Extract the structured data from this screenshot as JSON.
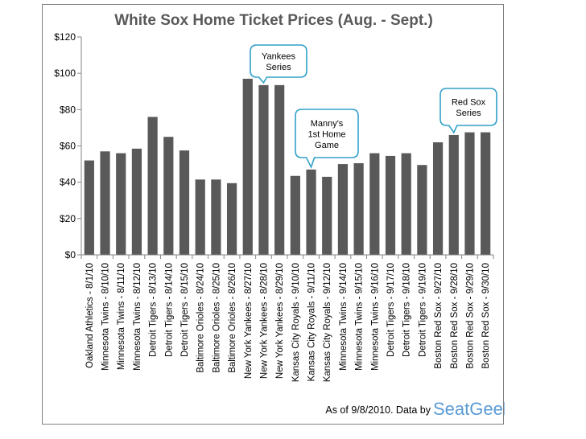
{
  "chart_data": {
    "type": "bar",
    "title": "White Sox Home Ticket Prices (Aug. - Sept.)",
    "xlabel": "",
    "ylabel": "",
    "ylim": [
      0,
      120
    ],
    "yticks": [
      "$0",
      "$20",
      "$40",
      "$60",
      "$80",
      "$100",
      "$120"
    ],
    "yticks_values": [
      0,
      20,
      40,
      60,
      80,
      100,
      120
    ],
    "grid": false,
    "bar_color": "#595959",
    "categories": [
      "Oakland Athletics - 8/1/10",
      "Minnesota Twins - 8/10/10",
      "Minnesota Twins - 8/11/10",
      "Minnesota Twins - 8/12/10",
      "Detroit Tigers - 8/13/10",
      "Detroit Tigers - 8/14/10",
      "Detroit Tigers - 8/15/10",
      "Baltimore Orioles - 8/24/10",
      "Baltimore Orioles - 8/25/10",
      "Baltimore Orioles - 8/26/10",
      "New York Yankees - 8/27/10",
      "New York Yankees - 8/28/10",
      "New York Yankees - 8/29/10",
      "Kansas City Royals - 9/10/10",
      "Kansas City Royals - 9/11/10",
      "Kansas City Royals - 9/12/10",
      "Minnesota Twins - 9/14/10",
      "Minnesota Twins - 9/15/10",
      "Minnesota Twins - 9/16/10",
      "Detroit Tigers - 9/17/10",
      "Detroit Tigers - 9/18/10",
      "Detroit Tigers - 9/19/10",
      "Boston Red Sox - 9/27/10",
      "Boston Red Sox - 9/28/10",
      "Boston Red Sox - 9/29/10",
      "Boston Red Sox - 9/30/10"
    ],
    "values": [
      52,
      57,
      56,
      58.5,
      76,
      65,
      57.5,
      41.5,
      41.5,
      39.5,
      97,
      93.5,
      93.5,
      43.5,
      47,
      43,
      50,
      50.5,
      56,
      54.5,
      56,
      49.5,
      62,
      66,
      67.5,
      67.5
    ],
    "annotations": [
      {
        "lines": [
          "Yankees",
          "Series"
        ],
        "target_index": 11
      },
      {
        "lines": [
          "Manny's",
          "1st Home",
          "Game"
        ],
        "target_index": 14
      },
      {
        "lines": [
          "Red Sox",
          "Series"
        ],
        "target_index": 23
      }
    ]
  },
  "footer": {
    "text": "As of 9/8/2010. Data by",
    "brand": "SeatGeek"
  }
}
